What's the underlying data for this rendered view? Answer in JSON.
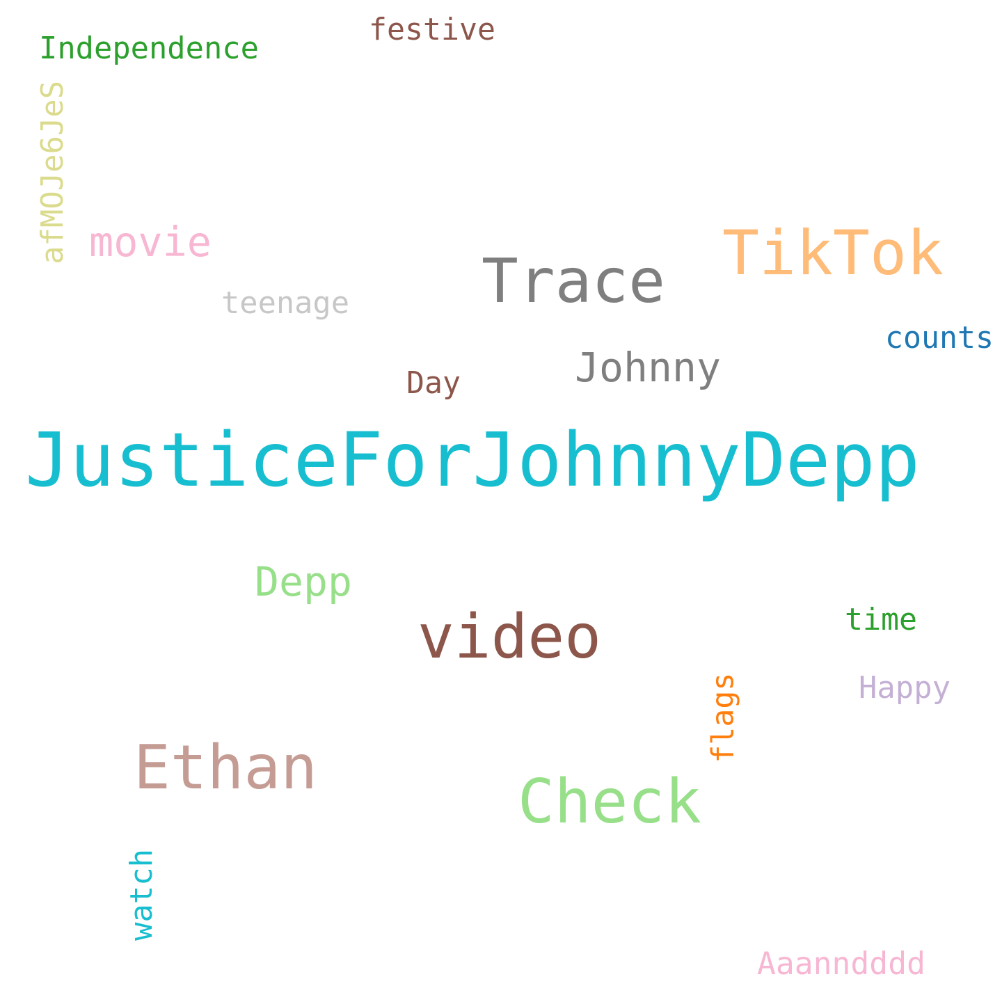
{
  "words": [
    {
      "id": "justicefor",
      "text": "JusticeForJohnnyDepp",
      "color": "#17becf",
      "vertical": false
    },
    {
      "id": "trace",
      "text": "Trace",
      "color": "#7f7f7f",
      "vertical": false
    },
    {
      "id": "tiktok",
      "text": "TikTok",
      "color": "#ffbb78",
      "vertical": false
    },
    {
      "id": "video",
      "text": "video",
      "color": "#8c564b",
      "vertical": false
    },
    {
      "id": "ethan",
      "text": "Ethan",
      "color": "#c49c94",
      "vertical": false
    },
    {
      "id": "check",
      "text": "Check",
      "color": "#98df8a",
      "vertical": false
    },
    {
      "id": "johnny",
      "text": "Johnny",
      "color": "#7f7f7f",
      "vertical": false
    },
    {
      "id": "movie",
      "text": "movie",
      "color": "#f7b6d2",
      "vertical": false
    },
    {
      "id": "depp",
      "text": "Depp",
      "color": "#98df8a",
      "vertical": false
    },
    {
      "id": "independence",
      "text": "Independence",
      "color": "#2ca02c",
      "vertical": false
    },
    {
      "id": "festive",
      "text": "festive",
      "color": "#8c564b",
      "vertical": false
    },
    {
      "id": "teenage",
      "text": "teenage",
      "color": "#c7c7c7",
      "vertical": false
    },
    {
      "id": "counts",
      "text": "counts",
      "color": "#1f77b4",
      "vertical": false
    },
    {
      "id": "day",
      "text": "Day",
      "color": "#8c564b",
      "vertical": false
    },
    {
      "id": "time",
      "text": "time",
      "color": "#2ca02c",
      "vertical": false
    },
    {
      "id": "happy",
      "text": "Happy",
      "color": "#c5b0d5",
      "vertical": false
    },
    {
      "id": "aaanndddd",
      "text": "Aaanndddd",
      "color": "#f7b6d2",
      "vertical": false
    },
    {
      "id": "afmoje",
      "text": "afMOJe6JeS",
      "color": "#dbdb8d",
      "vertical": true
    },
    {
      "id": "flags",
      "text": "flags",
      "color": "#ff7f0e",
      "vertical": true
    },
    {
      "id": "watch",
      "text": "watch",
      "color": "#17becf",
      "vertical": true
    }
  ]
}
